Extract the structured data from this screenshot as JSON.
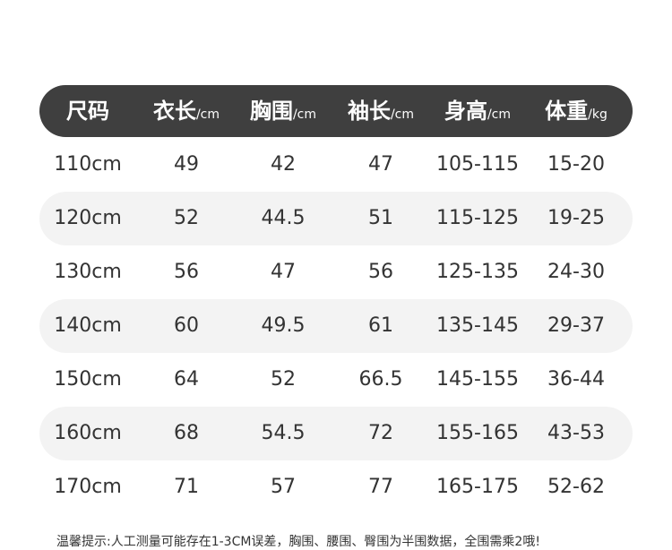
{
  "table": {
    "header": [
      {
        "label": "尺码",
        "unit": null
      },
      {
        "label": "衣长",
        "unit": "/cm"
      },
      {
        "label": "胸围",
        "unit": "/cm"
      },
      {
        "label": "袖长",
        "unit": "/cm"
      },
      {
        "label": "身高",
        "unit": "/cm"
      },
      {
        "label": "体重",
        "unit": "/kg"
      }
    ],
    "rows": [
      [
        "110cm",
        "49",
        "42",
        "47",
        "105-115",
        "15-20"
      ],
      [
        "120cm",
        "52",
        "44.5",
        "51",
        "115-125",
        "19-25"
      ],
      [
        "130cm",
        "56",
        "47",
        "56",
        "125-135",
        "24-30"
      ],
      [
        "140cm",
        "60",
        "49.5",
        "61",
        "135-145",
        "29-37"
      ],
      [
        "150cm",
        "64",
        "52",
        "66.5",
        "145-155",
        "36-44"
      ],
      [
        "160cm",
        "68",
        "54.5",
        "72",
        "155-165",
        "43-53"
      ],
      [
        "170cm",
        "71",
        "57",
        "77",
        "165-175",
        "52-62"
      ]
    ]
  },
  "note": "温馨提示:人工测量可能存在1-3CM误差，胸围、腰围、臀围为半围数据，全围需乘2哦!"
}
